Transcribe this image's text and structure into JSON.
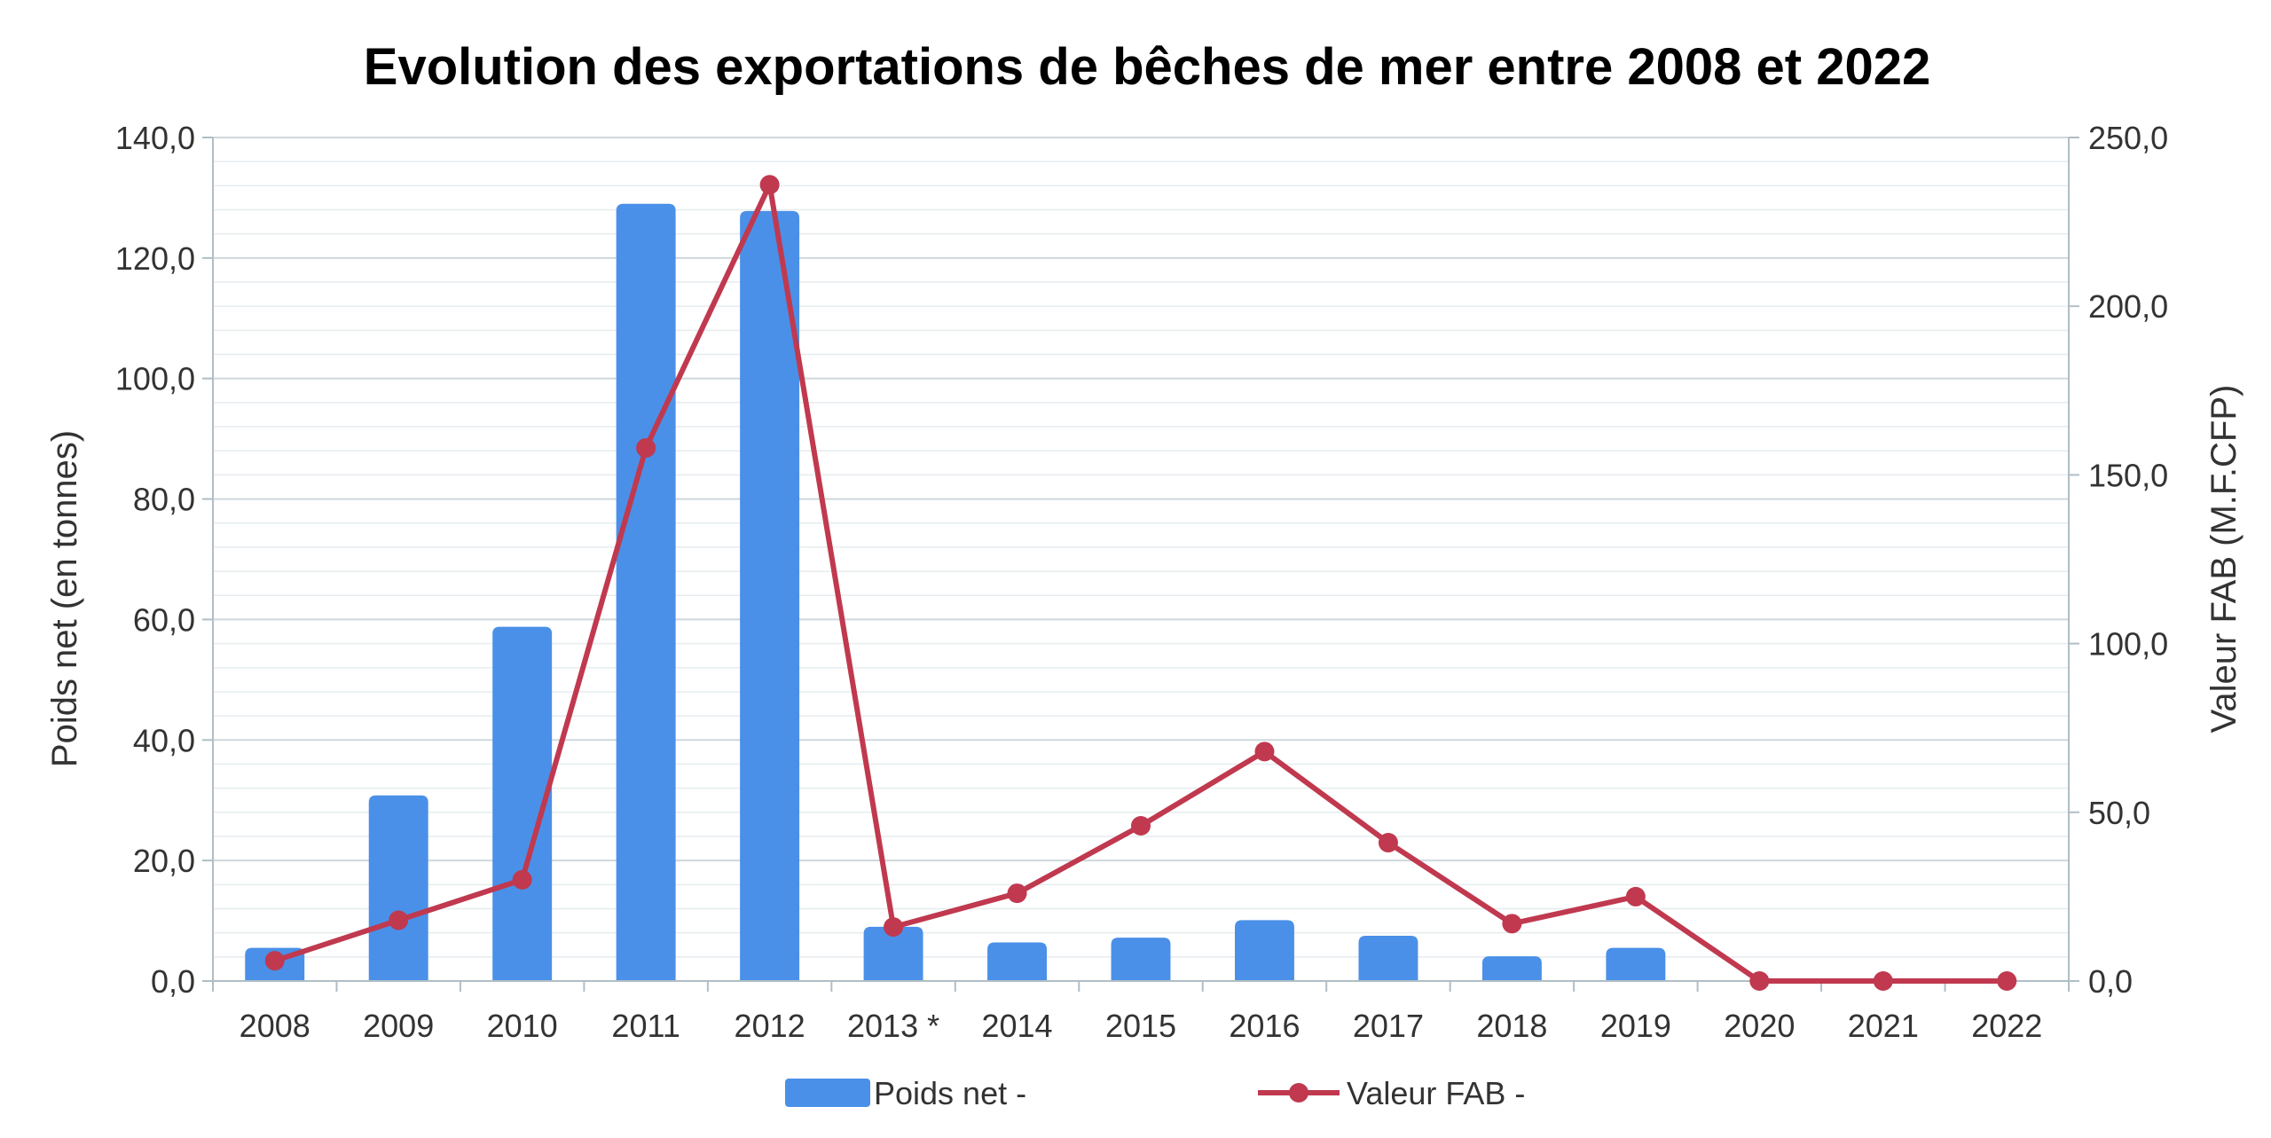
{
  "chart_data": {
    "type": "bar",
    "title": "Evolution des exportations de bêches de mer entre 2008 et 2022",
    "categories": [
      "2008",
      "2009",
      "2010",
      "2011",
      "2012",
      "2013 *",
      "2014",
      "2015",
      "2016",
      "2017",
      "2018",
      "2019",
      "2020",
      "2021",
      "2022"
    ],
    "series": [
      {
        "name": "Poids net -",
        "type": "bar",
        "axis": "left",
        "color": "#4a90e8",
        "values": [
          5.5,
          30.8,
          58.8,
          129.0,
          127.8,
          9.0,
          6.4,
          7.2,
          10.1,
          7.5,
          4.1,
          5.5,
          0.0,
          0.0,
          0.0
        ]
      },
      {
        "name": "Valeur FAB -",
        "type": "line",
        "axis": "right",
        "color": "#c0394f",
        "values": [
          6.0,
          18.0,
          30.0,
          158.0,
          236.0,
          16.0,
          26.0,
          46.0,
          68.0,
          41.0,
          17.0,
          25.0,
          0.0,
          0.0,
          0.0
        ]
      }
    ],
    "ylabel": "Poids net (en tonnes)",
    "y2label": "Valeur FAB (M.F.CFP)",
    "ylim": [
      0,
      140
    ],
    "y2lim": [
      0,
      250
    ],
    "yticks": [
      "0,0",
      "20,0",
      "40,0",
      "60,0",
      "80,0",
      "100,0",
      "120,0",
      "140,0"
    ],
    "y2ticks": [
      "0,0",
      "50,0",
      "100,0",
      "150,0",
      "200,0",
      "250,0"
    ],
    "grid": true,
    "legend": "bottom"
  }
}
